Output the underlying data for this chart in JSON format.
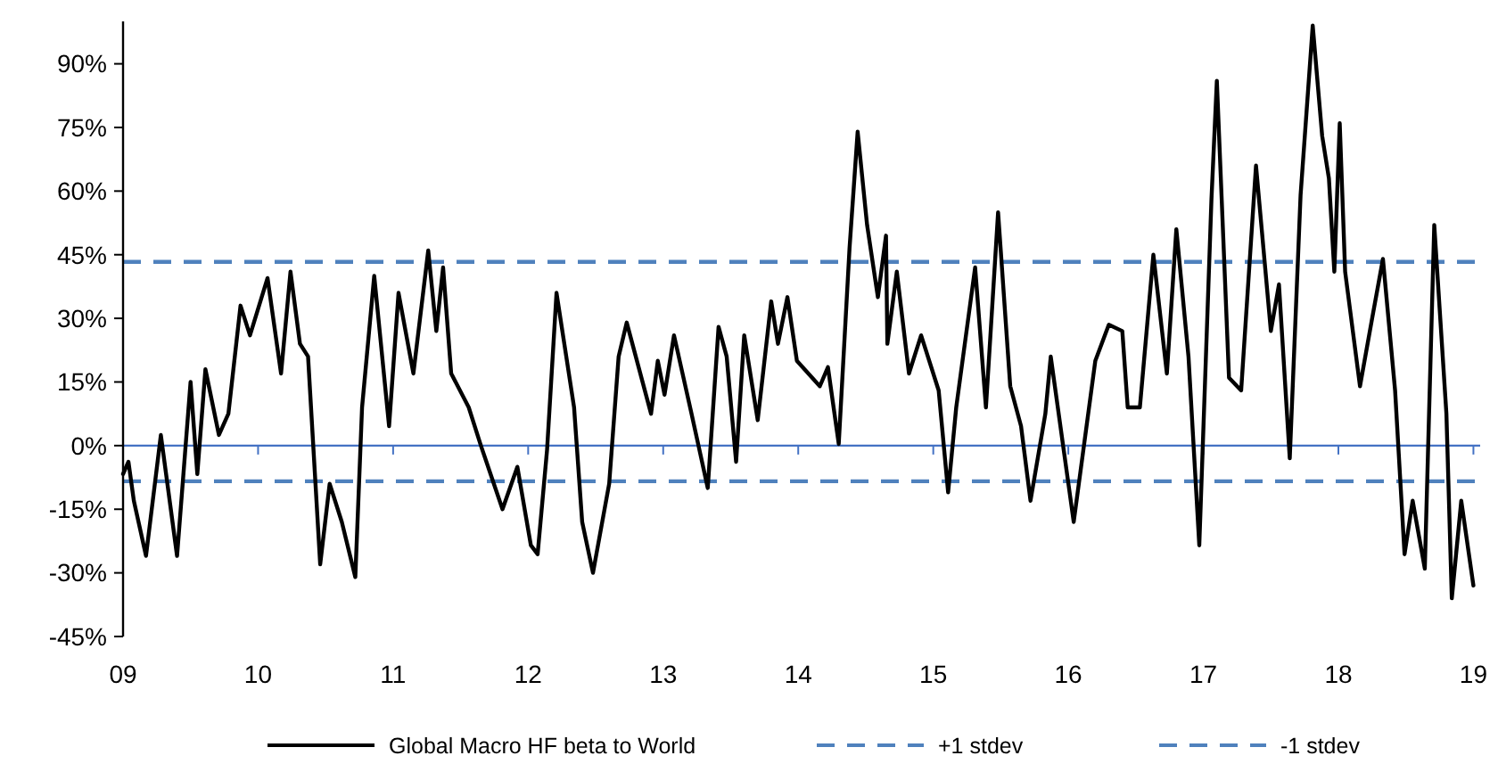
{
  "chart_data": {
    "type": "line",
    "xlim": [
      2009,
      2019.05
    ],
    "ylim": [
      -45,
      100
    ],
    "xticks": [
      {
        "value": 2009,
        "label": "09"
      },
      {
        "value": 2010,
        "label": "10"
      },
      {
        "value": 2011,
        "label": "11"
      },
      {
        "value": 2012,
        "label": "12"
      },
      {
        "value": 2013,
        "label": "13"
      },
      {
        "value": 2014,
        "label": "14"
      },
      {
        "value": 2015,
        "label": "15"
      },
      {
        "value": 2016,
        "label": "16"
      },
      {
        "value": 2017,
        "label": "17"
      },
      {
        "value": 2018,
        "label": "18"
      },
      {
        "value": 2019,
        "label": "19"
      }
    ],
    "yticks": [
      {
        "value": -45,
        "label": "-45%"
      },
      {
        "value": -30,
        "label": "-30%"
      },
      {
        "value": -15,
        "label": "-15%"
      },
      {
        "value": 0,
        "label": "0%"
      },
      {
        "value": 15,
        "label": "15%"
      },
      {
        "value": 30,
        "label": "30%"
      },
      {
        "value": 45,
        "label": "45%"
      },
      {
        "value": 60,
        "label": "60%"
      },
      {
        "value": 75,
        "label": "75%"
      },
      {
        "value": 90,
        "label": "90%"
      }
    ],
    "grid": false,
    "legend": "bottom",
    "line_style": "solid",
    "series": [
      {
        "name": "Global Macro HF beta to World",
        "color": "#000000",
        "x": [
          2009.0,
          2009.04,
          2009.08,
          2009.17,
          2009.28,
          2009.4,
          2009.5,
          2009.55,
          2009.61,
          2009.71,
          2009.78,
          2009.87,
          2009.94,
          2010.07,
          2010.17,
          2010.24,
          2010.31,
          2010.37,
          2010.46,
          2010.53,
          2010.62,
          2010.72,
          2010.77,
          2010.86,
          2010.97,
          2011.04,
          2011.15,
          2011.26,
          2011.32,
          2011.37,
          2011.43,
          2011.56,
          2011.65,
          2011.81,
          2011.92,
          2012.02,
          2012.07,
          2012.14,
          2012.21,
          2012.34,
          2012.4,
          2012.48,
          2012.6,
          2012.67,
          2012.73,
          2012.91,
          2012.96,
          2013.01,
          2013.08,
          2013.21,
          2013.33,
          2013.41,
          2013.47,
          2013.54,
          2013.6,
          2013.7,
          2013.8,
          2013.85,
          2013.92,
          2013.99,
          2014.16,
          2014.22,
          2014.3,
          2014.38,
          2014.44,
          2014.51,
          2014.59,
          2014.65,
          2014.66,
          2014.73,
          2014.82,
          2014.91,
          2015.04,
          2015.11,
          2015.17,
          2015.31,
          2015.39,
          2015.48,
          2015.57,
          2015.65,
          2015.72,
          2015.83,
          2015.87,
          2016.04,
          2016.2,
          2016.3,
          2016.4,
          2016.44,
          2016.53,
          2016.63,
          2016.73,
          2016.8,
          2016.89,
          2016.97,
          2017.06,
          2017.1,
          2017.19,
          2017.28,
          2017.39,
          2017.5,
          2017.56,
          2017.64,
          2017.72,
          2017.81,
          2017.88,
          2017.93,
          2017.97,
          2018.01,
          2018.05,
          2018.16,
          2018.25,
          2018.33,
          2018.42,
          2018.49,
          2018.55,
          2018.64,
          2018.71,
          2018.8,
          2018.84,
          2018.91,
          2019.0
        ],
        "values": [
          -6.7,
          -3.8,
          -13,
          -26,
          2.5,
          -26,
          15,
          -6.7,
          18,
          2.5,
          7.5,
          33,
          26,
          39.5,
          17,
          41,
          24,
          21,
          -28,
          -9,
          -18,
          -31,
          9,
          40,
          4.6,
          36,
          17,
          46,
          27,
          42,
          17,
          9,
          0,
          -15,
          -5,
          -23.5,
          -25.6,
          -1,
          36,
          9,
          -18,
          -30,
          -9,
          21,
          29,
          7.5,
          20,
          12,
          26,
          7.5,
          -10,
          28,
          21,
          -3.8,
          26,
          6,
          34,
          24,
          35,
          20,
          14,
          18.5,
          0.4,
          46.6,
          74,
          52,
          35,
          49.5,
          24,
          41,
          17,
          26,
          13,
          -11,
          9,
          42,
          9,
          55,
          14,
          4.6,
          -13,
          7.5,
          21,
          -18,
          20,
          28.5,
          27,
          9,
          9,
          45,
          17,
          51,
          21,
          -23.5,
          58,
          86,
          16,
          13,
          66,
          27,
          38,
          -3,
          59,
          99,
          73,
          63,
          41,
          76,
          41,
          14,
          30,
          44,
          13,
          -25.6,
          -13,
          -29,
          52,
          7.5,
          -36,
          -13,
          -33
        ]
      }
    ],
    "ref_lines": [
      {
        "axis": "y",
        "value": 0,
        "color": "#4472c4",
        "line_style": "solid"
      },
      {
        "axis": "y",
        "value": 43.3,
        "label": "+1 stdev",
        "color": "#4f81bd",
        "line_style": "dashed"
      },
      {
        "axis": "y",
        "value": -8.4,
        "label": "-1 stdev",
        "color": "#4f81bd",
        "line_style": "dashed"
      }
    ]
  }
}
